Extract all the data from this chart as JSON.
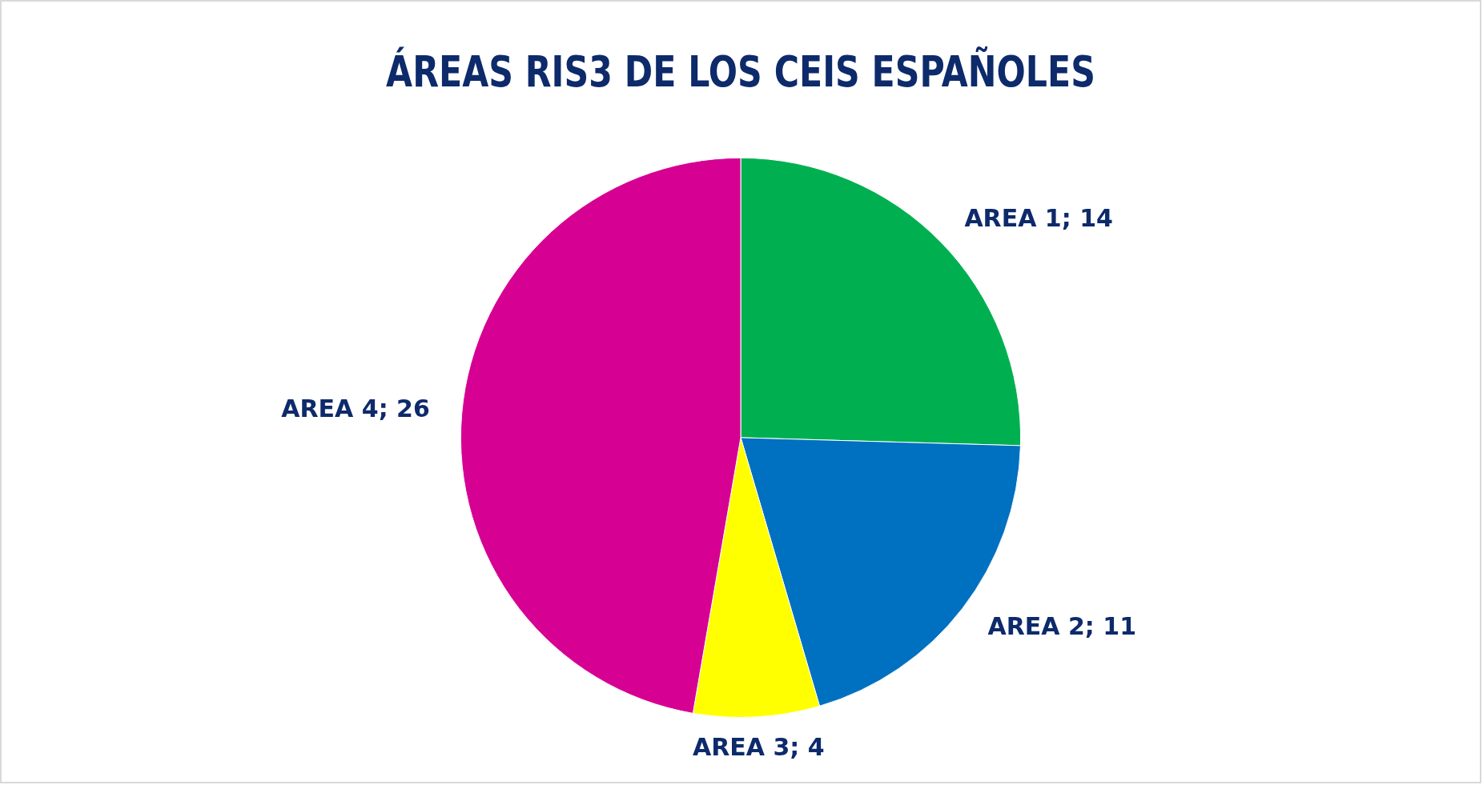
{
  "chart_data": {
    "type": "pie",
    "title": "ÁREAS RIS3 DE LOS CEIS ESPAÑOLES",
    "categories": [
      "AREA 1",
      "AREA 2",
      "AREA 3",
      "AREA 4"
    ],
    "values": [
      14,
      11,
      4,
      26
    ],
    "colors": [
      "#00b050",
      "#0070c0",
      "#ffff00",
      "#d60093"
    ],
    "value_labels": [
      "; 14",
      "; 11",
      "; 4",
      "; 26"
    ],
    "legend": false
  }
}
